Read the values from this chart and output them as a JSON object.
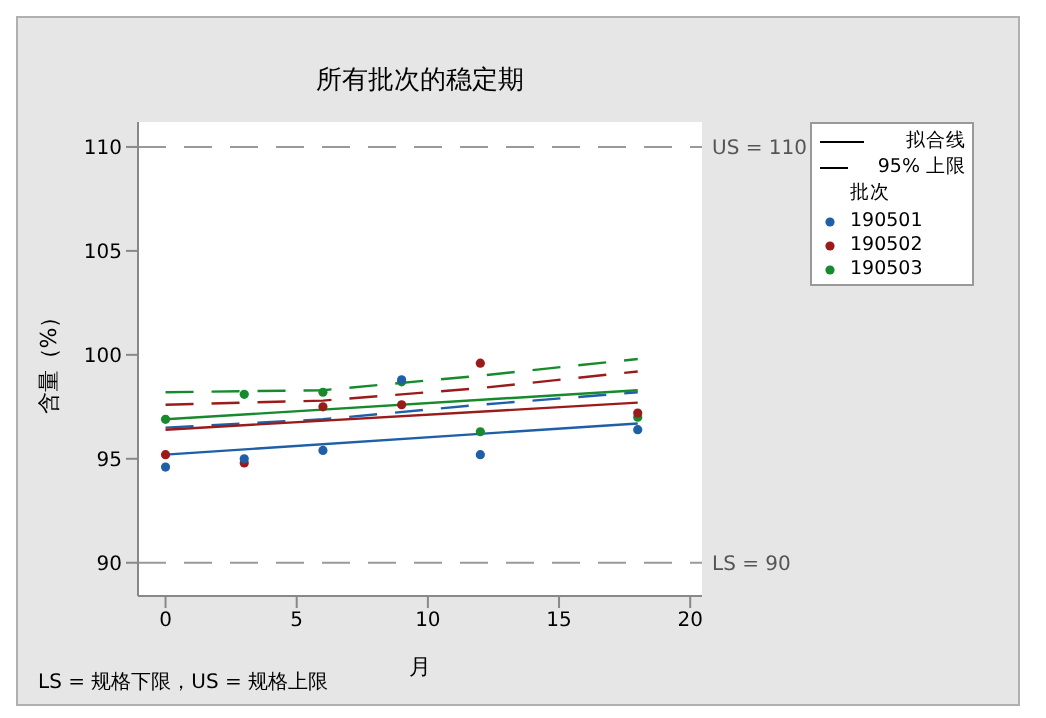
{
  "chart_data": {
    "type": "scatter",
    "title": "所有批次的稳定期",
    "xlabel": "月",
    "ylabel": "含量（%）",
    "legend_title": "批次",
    "legend": "right",
    "marker": "circle",
    "xlim": [
      -1.05,
      20.45
    ],
    "xticks": [
      0,
      5,
      10,
      15,
      20
    ],
    "ylim": [
      88.4,
      111.2
    ],
    "yticks": [
      90,
      95,
      100,
      105,
      110
    ],
    "ref_lines": [
      {
        "axis": "y",
        "value": 110,
        "label": "US = 110",
        "color": "#999999",
        "line_style": "dashed"
      },
      {
        "axis": "y",
        "value": 90,
        "label": "LS = 90",
        "color": "#999999",
        "line_style": "dashed"
      }
    ],
    "annotations": [
      "拟合线",
      "95% 上限",
      "LS = 规格下限，US = 规格上限"
    ],
    "series": [
      {
        "name": "190501",
        "color": "#1f5fa8",
        "x": [
          0,
          3,
          6,
          9,
          12,
          18
        ],
        "values": [
          94.6,
          95.0,
          95.4,
          98.8,
          95.2,
          96.4
        ]
      },
      {
        "name": "190502",
        "color": "#9b1b1b",
        "x": [
          0,
          3,
          6,
          9,
          12,
          18
        ],
        "values": [
          95.2,
          94.8,
          97.5,
          97.6,
          99.6,
          97.2
        ]
      },
      {
        "name": "190503",
        "color": "#168a2c",
        "x": [
          0,
          3,
          6,
          9,
          12,
          18
        ],
        "values": [
          96.9,
          98.1,
          98.2,
          98.7,
          96.3,
          97.0
        ]
      },
      {
        "type": "line",
        "color": "#1f5fa8",
        "marker": "none",
        "line_style": "solid",
        "x": [
          0,
          18
        ],
        "values": [
          95.2,
          96.7
        ]
      },
      {
        "type": "line",
        "color": "#9b1b1b",
        "marker": "none",
        "line_style": "solid",
        "x": [
          0,
          18
        ],
        "values": [
          96.4,
          97.7
        ]
      },
      {
        "type": "line",
        "color": "#168a2c",
        "marker": "none",
        "line_style": "solid",
        "x": [
          0,
          18
        ],
        "values": [
          96.9,
          98.3
        ]
      },
      {
        "type": "line",
        "color": "#1f5fa8",
        "marker": "none",
        "line_style": "dashed",
        "x": [
          0,
          6,
          12,
          18
        ],
        "values": [
          96.5,
          96.9,
          97.6,
          98.2
        ]
      },
      {
        "type": "line",
        "color": "#9b1b1b",
        "marker": "none",
        "line_style": "dashed",
        "x": [
          0,
          6,
          12,
          18
        ],
        "values": [
          97.6,
          97.8,
          98.4,
          99.2
        ]
      },
      {
        "type": "line",
        "color": "#168a2c",
        "marker": "none",
        "line_style": "dashed",
        "x": [
          0,
          6,
          12,
          18
        ],
        "values": [
          98.2,
          98.3,
          99.0,
          99.8
        ]
      }
    ]
  }
}
